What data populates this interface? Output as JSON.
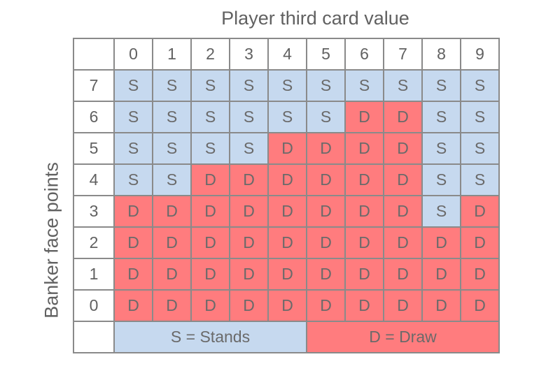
{
  "title": "Player third card value",
  "y_axis_label": "Banker face points",
  "columns": [
    "0",
    "1",
    "2",
    "3",
    "4",
    "5",
    "6",
    "7",
    "8",
    "9"
  ],
  "rows": [
    {
      "label": "7",
      "cells": [
        "S",
        "S",
        "S",
        "S",
        "S",
        "S",
        "S",
        "S",
        "S",
        "S"
      ]
    },
    {
      "label": "6",
      "cells": [
        "S",
        "S",
        "S",
        "S",
        "S",
        "S",
        "D",
        "D",
        "S",
        "S"
      ]
    },
    {
      "label": "5",
      "cells": [
        "S",
        "S",
        "S",
        "S",
        "D",
        "D",
        "D",
        "D",
        "S",
        "S"
      ]
    },
    {
      "label": "4",
      "cells": [
        "S",
        "S",
        "D",
        "D",
        "D",
        "D",
        "D",
        "D",
        "S",
        "S"
      ]
    },
    {
      "label": "3",
      "cells": [
        "D",
        "D",
        "D",
        "D",
        "D",
        "D",
        "D",
        "D",
        "S",
        "D"
      ]
    },
    {
      "label": "2",
      "cells": [
        "D",
        "D",
        "D",
        "D",
        "D",
        "D",
        "D",
        "D",
        "D",
        "D"
      ]
    },
    {
      "label": "1",
      "cells": [
        "D",
        "D",
        "D",
        "D",
        "D",
        "D",
        "D",
        "D",
        "D",
        "D"
      ]
    },
    {
      "label": "0",
      "cells": [
        "D",
        "D",
        "D",
        "D",
        "D",
        "D",
        "D",
        "D",
        "D",
        "D"
      ]
    }
  ],
  "legend": {
    "stands": "S =  Stands",
    "draw": "D =  Draw"
  },
  "colors": {
    "stands": "#c6d9ef",
    "draw": "#ff7c7e",
    "border": "#8a8a8a",
    "text": "#616161"
  }
}
